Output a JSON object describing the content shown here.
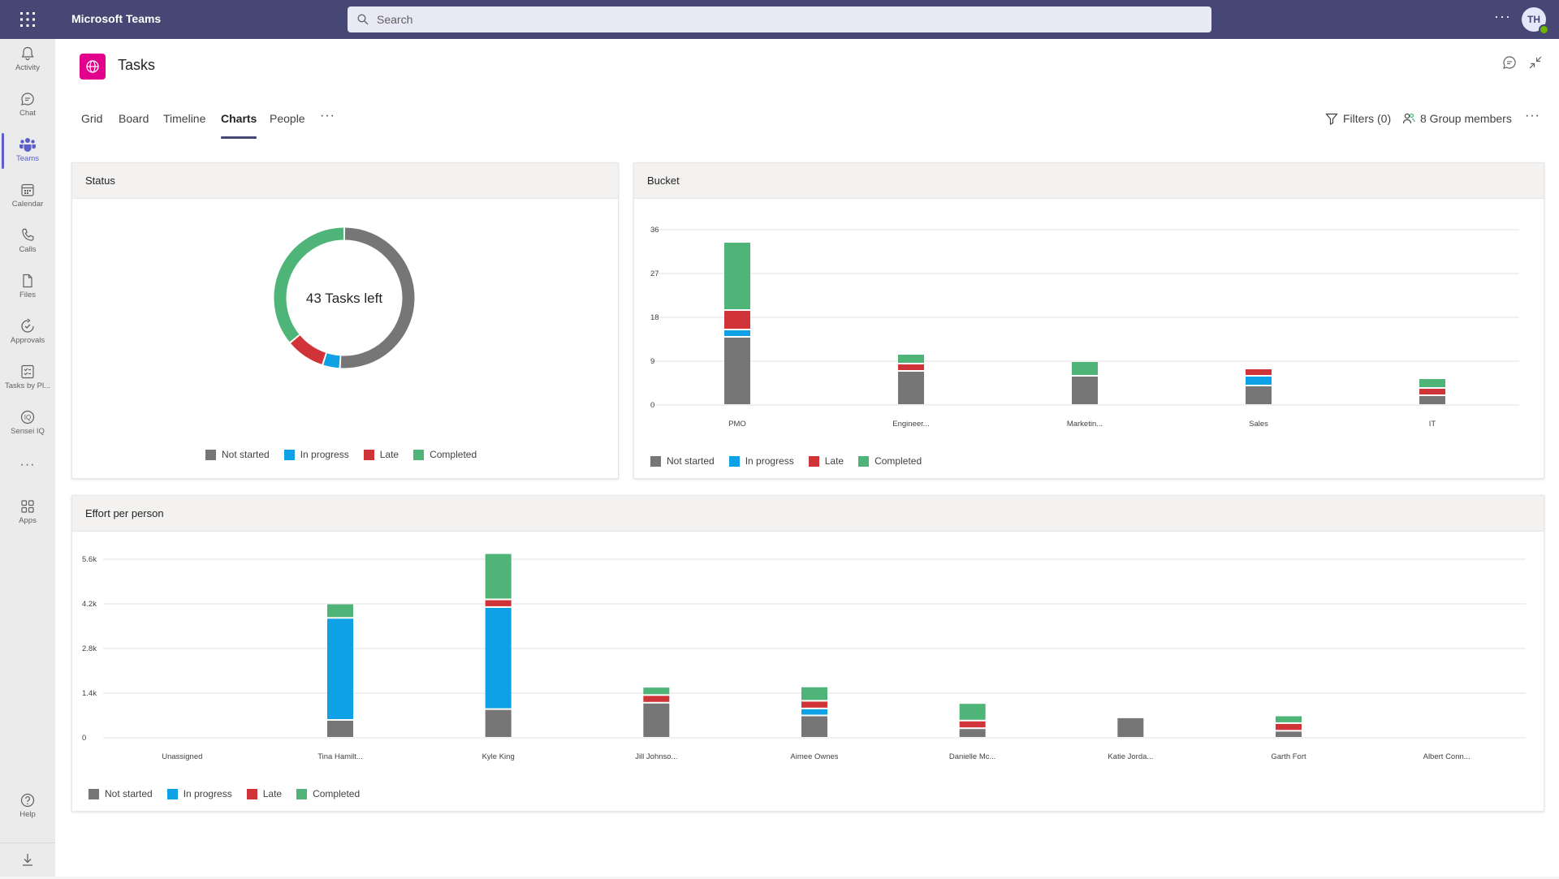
{
  "app": {
    "title": "Microsoft Teams",
    "search_placeholder": "Search",
    "user_initials": "TH"
  },
  "rail": {
    "items": [
      {
        "label": "Activity",
        "icon": "bell-icon"
      },
      {
        "label": "Chat",
        "icon": "chat-icon"
      },
      {
        "label": "Teams",
        "icon": "teams-icon"
      },
      {
        "label": "Calendar",
        "icon": "calendar-icon"
      },
      {
        "label": "Calls",
        "icon": "phone-icon"
      },
      {
        "label": "Files",
        "icon": "file-icon"
      },
      {
        "label": "Approvals",
        "icon": "approvals-icon"
      },
      {
        "label": "Tasks by Pl...",
        "icon": "tasks-icon"
      },
      {
        "label": "Sensei IQ",
        "icon": "sensei-icon"
      },
      {
        "label": "Apps",
        "icon": "apps-icon"
      },
      {
        "label": "Help",
        "icon": "help-icon"
      }
    ],
    "more": "···"
  },
  "header": {
    "title": "Tasks"
  },
  "tabs": [
    {
      "label": "Grid"
    },
    {
      "label": "Board"
    },
    {
      "label": "Timeline"
    },
    {
      "label": "Charts"
    },
    {
      "label": "People"
    }
  ],
  "tabs_more": "···",
  "toolbar": {
    "filters_label": "Filters (0)",
    "members_label": "8 Group members",
    "more": "···"
  },
  "colors": {
    "not_started": "#767676",
    "in_progress": "#0ea1e6",
    "late": "#d13438",
    "completed": "#4fb478"
  },
  "legend": {
    "not_started": "Not started",
    "in_progress": "In progress",
    "late": "Late",
    "completed": "Completed"
  },
  "status_card": {
    "title": "Status",
    "center_text": "43 Tasks left",
    "chart_data": {
      "type": "pie",
      "slices": [
        {
          "name": "Not started",
          "value": 51
        },
        {
          "name": "In progress",
          "value": 4
        },
        {
          "name": "Late",
          "value": 9
        },
        {
          "name": "Completed",
          "value": 36
        }
      ]
    }
  },
  "bucket_card": {
    "title": "Bucket",
    "chart_data": {
      "type": "bar",
      "stacked": true,
      "categories": [
        "PMO",
        "Engineer...",
        "Marketin...",
        "Sales",
        "IT"
      ],
      "series": [
        {
          "name": "Not started",
          "values": [
            14,
            7,
            6,
            4,
            2
          ]
        },
        {
          "name": "In progress",
          "values": [
            1.5,
            0,
            0,
            2,
            0
          ]
        },
        {
          "name": "Late",
          "values": [
            4,
            1.5,
            0,
            1.5,
            1.5
          ]
        },
        {
          "name": "Completed",
          "values": [
            14,
            2,
            3,
            0,
            2
          ]
        }
      ],
      "ylim": [
        0,
        36
      ],
      "yticks": [
        "36",
        "27",
        "18",
        "9",
        "0"
      ],
      "ytick_values": [
        36,
        27,
        18,
        9,
        0
      ],
      "legend_position": "bottom-left",
      "grid": true
    }
  },
  "effort_card": {
    "title": "Effort per person",
    "chart_data": {
      "type": "bar",
      "stacked": true,
      "categories": [
        "Unassigned",
        "Tina Hamilt...",
        "Kyle King",
        "Jill Johnso...",
        "Aimee Ownes",
        "Danielle Mc...",
        "Katie Jorda...",
        "Garth Fort",
        "Albert Conn..."
      ],
      "series": [
        {
          "name": "Not started",
          "values": [
            0,
            560,
            900,
            1100,
            700,
            300,
            640,
            220,
            0
          ]
        },
        {
          "name": "In progress",
          "values": [
            0,
            3200,
            3200,
            0,
            220,
            0,
            0,
            0,
            0
          ]
        },
        {
          "name": "Late",
          "values": [
            0,
            0,
            240,
            240,
            240,
            240,
            0,
            240,
            0
          ]
        },
        {
          "name": "Completed",
          "values": [
            0,
            450,
            1450,
            260,
            450,
            550,
            0,
            240,
            0
          ]
        }
      ],
      "ylim": [
        0,
        5600
      ],
      "yticks": [
        "5.6k",
        "4.2k",
        "2.8k",
        "1.4k",
        "0"
      ],
      "ytick_values": [
        5600,
        4200,
        2800,
        1400,
        0
      ],
      "legend_position": "bottom-left",
      "grid": true
    }
  }
}
